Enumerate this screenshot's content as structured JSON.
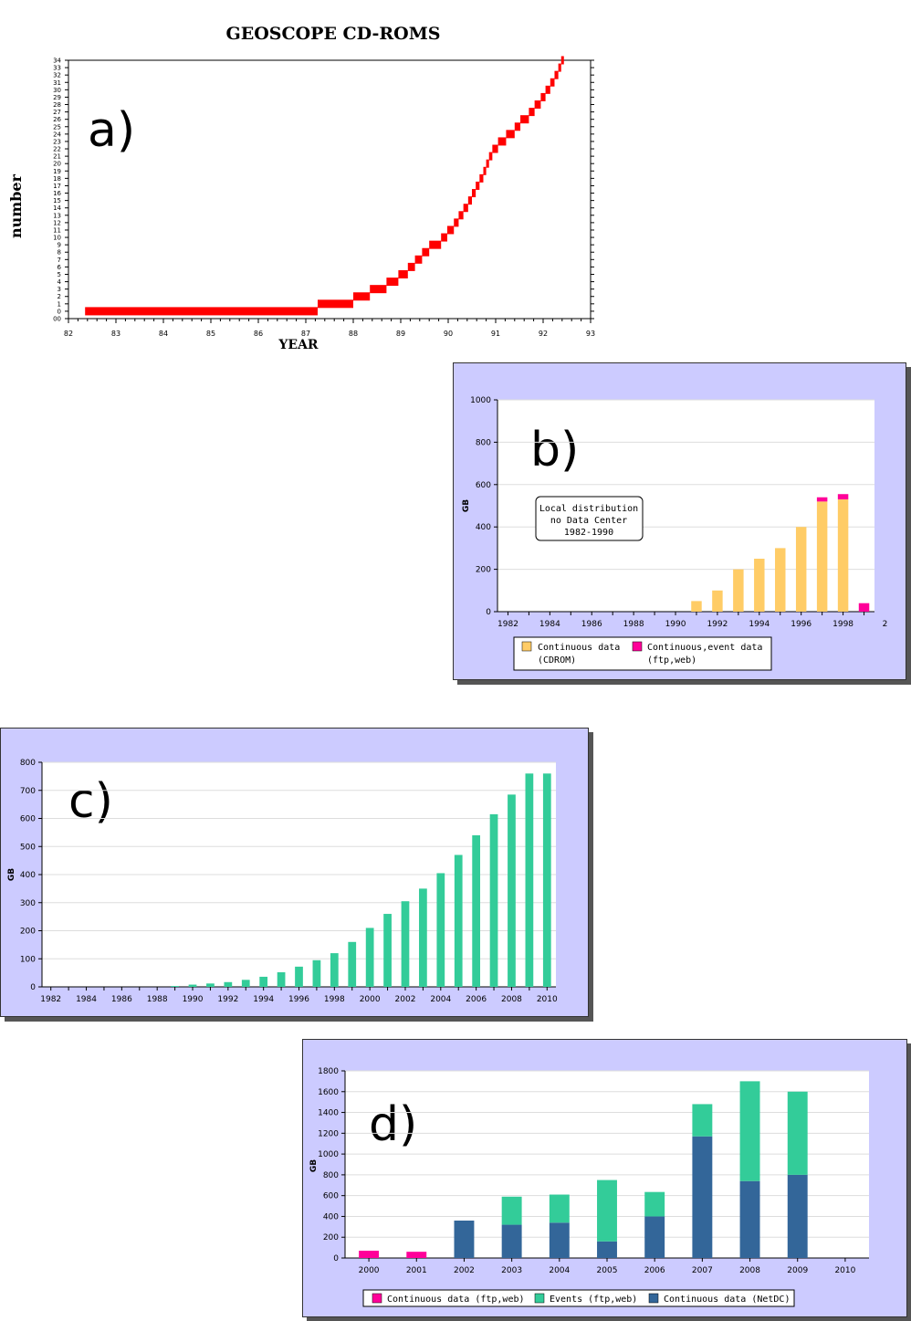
{
  "chart_data": [
    {
      "id": "a",
      "type": "line",
      "panel_label": "a)",
      "title": "GEOSCOPE CD-ROMS",
      "xlabel": "YEAR",
      "ylabel": "number",
      "xlim": [
        82,
        93
      ],
      "ylim": [
        0,
        34
      ],
      "x_ticks": [
        "82",
        "83",
        "84",
        "85",
        "86",
        "87",
        "88",
        "89",
        "90",
        "91",
        "92",
        "93"
      ],
      "y_ticks": [
        "00",
        "0",
        "1",
        "2",
        "3",
        "4",
        "5",
        "6",
        "7",
        "8",
        "9",
        "10",
        "11",
        "12",
        "13",
        "14",
        "15",
        "16",
        "17",
        "18",
        "19",
        "20",
        "21",
        "22",
        "23",
        "24",
        "25",
        "26",
        "27",
        "28",
        "29",
        "30",
        "31",
        "32",
        "33",
        "34"
      ],
      "series": [
        {
          "color": "#ff0000",
          "steps": [
            [
              82.35,
              87.25,
              0
            ],
            [
              87.25,
              88.0,
              1
            ],
            [
              88.0,
              88.35,
              2
            ],
            [
              88.35,
              88.7,
              3
            ],
            [
              88.7,
              88.95,
              4
            ],
            [
              88.95,
              89.15,
              5
            ],
            [
              89.15,
              89.3,
              6
            ],
            [
              89.3,
              89.45,
              7
            ],
            [
              89.45,
              89.6,
              8
            ],
            [
              89.6,
              89.85,
              9
            ],
            [
              89.85,
              89.98,
              10
            ],
            [
              89.98,
              90.12,
              11
            ],
            [
              90.12,
              90.22,
              12
            ],
            [
              90.22,
              90.32,
              13
            ],
            [
              90.32,
              90.42,
              14
            ],
            [
              90.42,
              90.5,
              15
            ],
            [
              90.5,
              90.58,
              16
            ],
            [
              90.58,
              90.66,
              17
            ],
            [
              90.66,
              90.74,
              18
            ],
            [
              90.74,
              90.8,
              19
            ],
            [
              90.8,
              90.86,
              20
            ],
            [
              90.86,
              90.93,
              21
            ],
            [
              90.93,
              91.05,
              22
            ],
            [
              91.05,
              91.22,
              23
            ],
            [
              91.22,
              91.4,
              24
            ],
            [
              91.4,
              91.52,
              25
            ],
            [
              91.52,
              91.7,
              26
            ],
            [
              91.7,
              91.82,
              27
            ],
            [
              91.82,
              91.95,
              28
            ],
            [
              91.95,
              92.05,
              29
            ],
            [
              92.05,
              92.15,
              30
            ],
            [
              92.15,
              92.24,
              31
            ],
            [
              92.24,
              92.32,
              32
            ],
            [
              92.32,
              92.38,
              33
            ],
            [
              92.38,
              92.42,
              34
            ]
          ]
        }
      ]
    },
    {
      "id": "b",
      "type": "bar",
      "panel_label": "b)",
      "ylabel": "GB",
      "ylim": [
        0,
        1000
      ],
      "y_ticks": [
        "0",
        "200",
        "400",
        "600",
        "800",
        "1000"
      ],
      "x_ticks": [
        "1982",
        "1984",
        "1986",
        "1988",
        "1990",
        "1992",
        "1994",
        "1996",
        "1998",
        "2"
      ],
      "categories": [
        "1982",
        "1983",
        "1984",
        "1985",
        "1986",
        "1987",
        "1988",
        "1989",
        "1990",
        "1991",
        "1992",
        "1993",
        "1994",
        "1995",
        "1996",
        "1997",
        "1998",
        "1999"
      ],
      "series": [
        {
          "name": "Continuous data (CDROM)",
          "color": "#ffcc66",
          "values": [
            0,
            0,
            0,
            0,
            0,
            0,
            0,
            0,
            0,
            50,
            100,
            200,
            250,
            300,
            400,
            520,
            530,
            0
          ]
        },
        {
          "name": "Continuous,event data (ftp,web)",
          "color": "#ff0099",
          "values": [
            0,
            0,
            0,
            0,
            0,
            0,
            0,
            0,
            0,
            0,
            0,
            0,
            0,
            0,
            0,
            20,
            25,
            40
          ]
        }
      ],
      "annotation": [
        "Local distribution",
        "no Data Center",
        "1982-1990"
      ],
      "legend": [
        {
          "label_line1": "Continuous data",
          "label_line2": "(CDROM)",
          "color": "#ffcc66"
        },
        {
          "label_line1": "Continuous,event data",
          "label_line2": "(ftp,web)",
          "color": "#ff0099"
        }
      ]
    },
    {
      "id": "c",
      "type": "bar",
      "panel_label": "c)",
      "ylabel": "GB",
      "ylim": [
        0,
        800
      ],
      "y_ticks": [
        "0",
        "100",
        "200",
        "300",
        "400",
        "500",
        "600",
        "700",
        "800"
      ],
      "x_ticks": [
        "1982",
        "1984",
        "1986",
        "1988",
        "1990",
        "1992",
        "1994",
        "1996",
        "1998",
        "2000",
        "2002",
        "2004",
        "2006",
        "2008",
        "2010"
      ],
      "categories": [
        "1982",
        "1983",
        "1984",
        "1985",
        "1986",
        "1987",
        "1988",
        "1989",
        "1990",
        "1991",
        "1992",
        "1993",
        "1994",
        "1995",
        "1996",
        "1997",
        "1998",
        "1999",
        "2000",
        "2001",
        "2002",
        "2003",
        "2004",
        "2005",
        "2006",
        "2007",
        "2008",
        "2009",
        "2010"
      ],
      "series": [
        {
          "color": "#33cc99",
          "values": [
            0,
            0,
            0,
            0,
            0,
            0,
            0,
            3,
            8,
            12,
            17,
            25,
            36,
            52,
            72,
            95,
            120,
            160,
            210,
            260,
            305,
            350,
            405,
            470,
            540,
            615,
            685,
            760,
            760
          ]
        }
      ]
    },
    {
      "id": "d",
      "type": "bar",
      "panel_label": "d)",
      "ylabel": "GB",
      "ylim": [
        0,
        1800
      ],
      "y_ticks": [
        "0",
        "200",
        "400",
        "600",
        "800",
        "1000",
        "1200",
        "1400",
        "1600",
        "1800"
      ],
      "categories": [
        "2000",
        "2001",
        "2002",
        "2003",
        "2004",
        "2005",
        "2006",
        "2007",
        "2008",
        "2009",
        "2010"
      ],
      "series": [
        {
          "name": "Continuous data (ftp,web)",
          "color": "#ff0099",
          "values": [
            70,
            60,
            0,
            0,
            0,
            0,
            0,
            0,
            0,
            0,
            0
          ]
        },
        {
          "name": "Continuous data (NetDC)",
          "color": "#336699",
          "values": [
            0,
            0,
            360,
            320,
            340,
            160,
            400,
            1170,
            740,
            800,
            0
          ]
        },
        {
          "name": "Events (ftp,web)",
          "color": "#33cc99",
          "values": [
            0,
            0,
            0,
            270,
            270,
            590,
            235,
            310,
            960,
            800,
            0
          ]
        }
      ],
      "legend": [
        {
          "label": "Continuous data (ftp,web)",
          "color": "#ff0099"
        },
        {
          "label": "Events (ftp,web)",
          "color": "#33cc99"
        },
        {
          "label": "Continuous data (NetDC)",
          "color": "#336699"
        }
      ]
    }
  ]
}
